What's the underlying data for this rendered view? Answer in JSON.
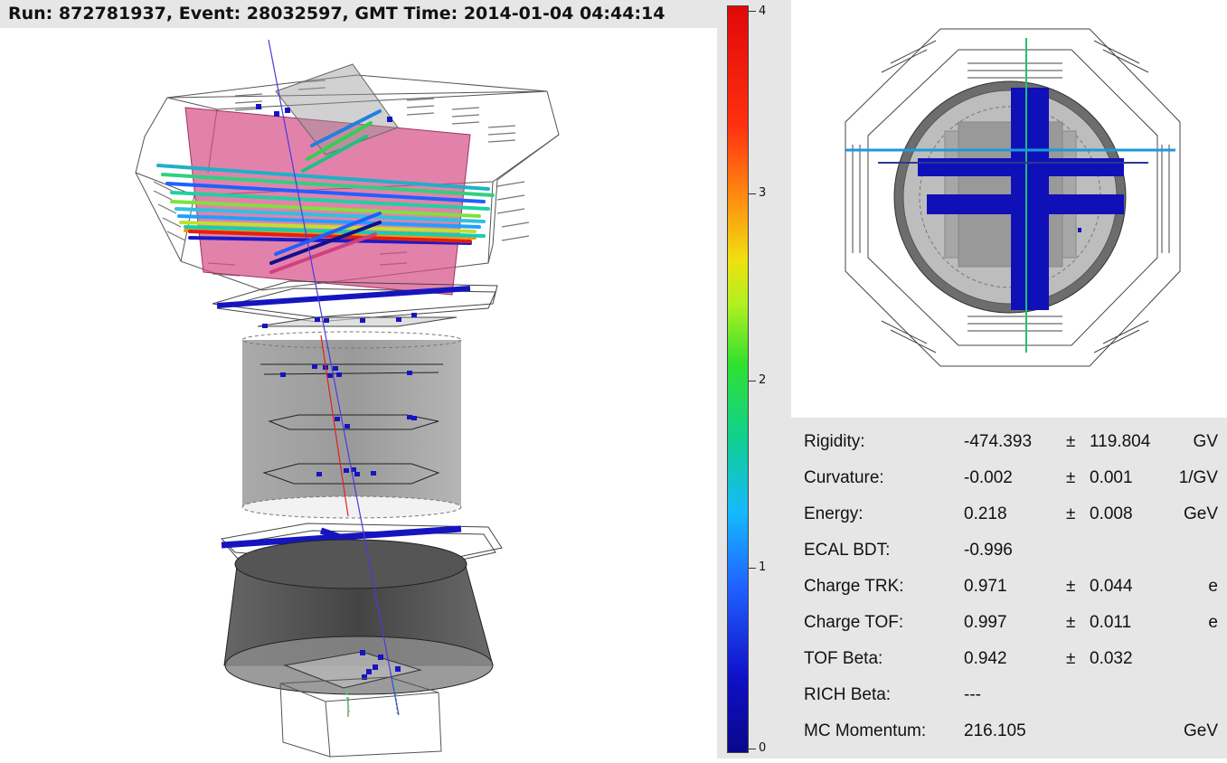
{
  "header": {
    "title": "Run: 872781937, Event: 28032597, GMT Time: 2014-01-04 04:44:14"
  },
  "colorbar": {
    "ticks": [
      "4",
      "3",
      "2",
      "1",
      "0"
    ],
    "colors": [
      "#e00808",
      "#ff9010",
      "#f0e010",
      "#30e030",
      "#16b8ff",
      "#2060ff",
      "#08088a"
    ]
  },
  "info": {
    "rows": [
      {
        "label": "Rigidity:",
        "value": "-474.393",
        "pm": "±",
        "error": "119.804",
        "unit": "GV"
      },
      {
        "label": "Curvature:",
        "value": "-0.002",
        "pm": "±",
        "error": "0.001",
        "unit": "1/GV"
      },
      {
        "label": "Energy:",
        "value": "0.218",
        "pm": "±",
        "error": "0.008",
        "unit": "GeV"
      },
      {
        "label": "ECAL BDT:",
        "value": "-0.996",
        "pm": "",
        "error": "",
        "unit": ""
      },
      {
        "label": "Charge TRK:",
        "value": "0.971",
        "pm": "±",
        "error": "0.044",
        "unit": "e"
      },
      {
        "label": "Charge TOF:",
        "value": "0.997",
        "pm": "±",
        "error": "0.011",
        "unit": "e"
      },
      {
        "label": "TOF Beta:",
        "value": "0.942",
        "pm": "±",
        "error": "0.032",
        "unit": ""
      },
      {
        "label": "RICH Beta:",
        "value": "---",
        "pm": "",
        "error": "",
        "unit": ""
      },
      {
        "label": "MC Momentum:",
        "value": "216.105",
        "pm": "",
        "error": "",
        "unit": "GeV"
      }
    ]
  }
}
